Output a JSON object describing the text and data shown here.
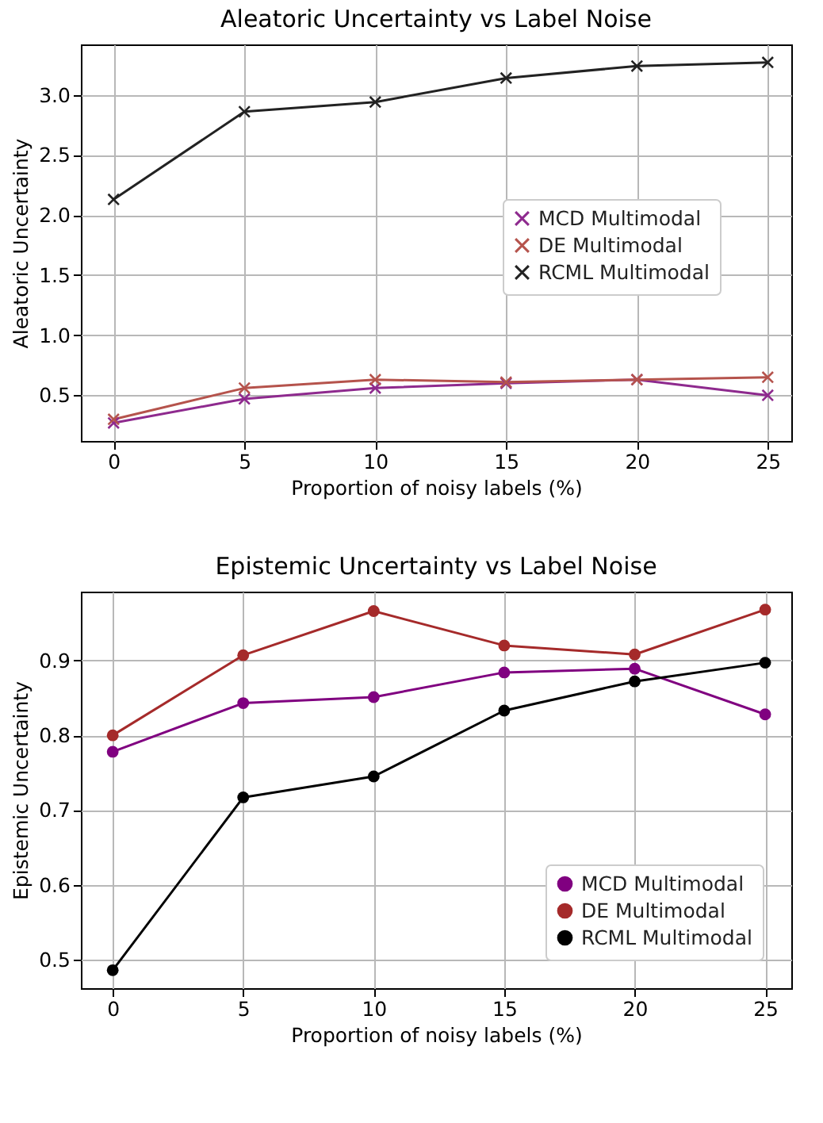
{
  "chart_data": [
    {
      "type": "line",
      "title": "Aleatoric Uncertainty vs Label Noise",
      "xlabel": "Proportion of noisy labels (%)",
      "ylabel": "Aleatoric Uncertainty",
      "x": [
        0,
        5,
        10,
        15,
        20,
        25
      ],
      "xlim": [
        -1.25,
        25.9
      ],
      "xticks": [
        0,
        5,
        10,
        15,
        20,
        25
      ],
      "ylim": [
        0.12,
        3.42
      ],
      "yticks": [
        0.5,
        {
          "value": 1,
          "label": "1.0"
        },
        1.5,
        {
          "value": 2,
          "label": "2.0"
        },
        2.5,
        {
          "value": 3,
          "label": "3.0"
        }
      ],
      "grid": true,
      "legend": "right",
      "marker": "cross",
      "line_style": "solid",
      "series": [
        {
          "name": "MCD Multimodal",
          "color": "#8e2a8e",
          "values": [
            0.27,
            0.47,
            0.56,
            0.6,
            0.63,
            0.5
          ]
        },
        {
          "name": "DE Multimodal",
          "color": "#b5534c",
          "values": [
            0.3,
            0.56,
            0.63,
            0.61,
            0.63,
            0.65
          ]
        },
        {
          "name": "RCML Multimodal",
          "color": "#222222",
          "values": [
            2.13,
            2.86,
            2.94,
            3.14,
            3.24,
            3.27
          ]
        }
      ]
    },
    {
      "type": "line",
      "title": "Epistemic Uncertainty vs Label Noise",
      "xlabel": "Proportion of noisy labels (%)",
      "ylabel": "Epistemic Uncertainty",
      "x": [
        0,
        5,
        10,
        15,
        20,
        25
      ],
      "xlim": [
        -1.22,
        26.0
      ],
      "xticks": [
        0,
        5,
        10,
        15,
        20,
        25
      ],
      "ylim": [
        0.462,
        0.992
      ],
      "yticks": [
        0.5,
        0.6,
        0.7,
        0.8,
        0.9
      ],
      "grid": true,
      "legend": "bottom right",
      "marker": "circle",
      "line_style": "solid",
      "series": [
        {
          "name": "MCD Multimodal",
          "color": "#800080",
          "values": [
            0.778,
            0.843,
            0.851,
            0.884,
            0.889,
            0.828
          ]
        },
        {
          "name": "DE Multimodal",
          "color": "#a52a2a",
          "values": [
            0.8,
            0.907,
            0.966,
            0.92,
            0.908,
            0.968
          ]
        },
        {
          "name": "RCML Multimodal",
          "color": "#000000",
          "values": [
            0.486,
            0.717,
            0.745,
            0.833,
            0.872,
            0.897
          ]
        }
      ]
    }
  ]
}
